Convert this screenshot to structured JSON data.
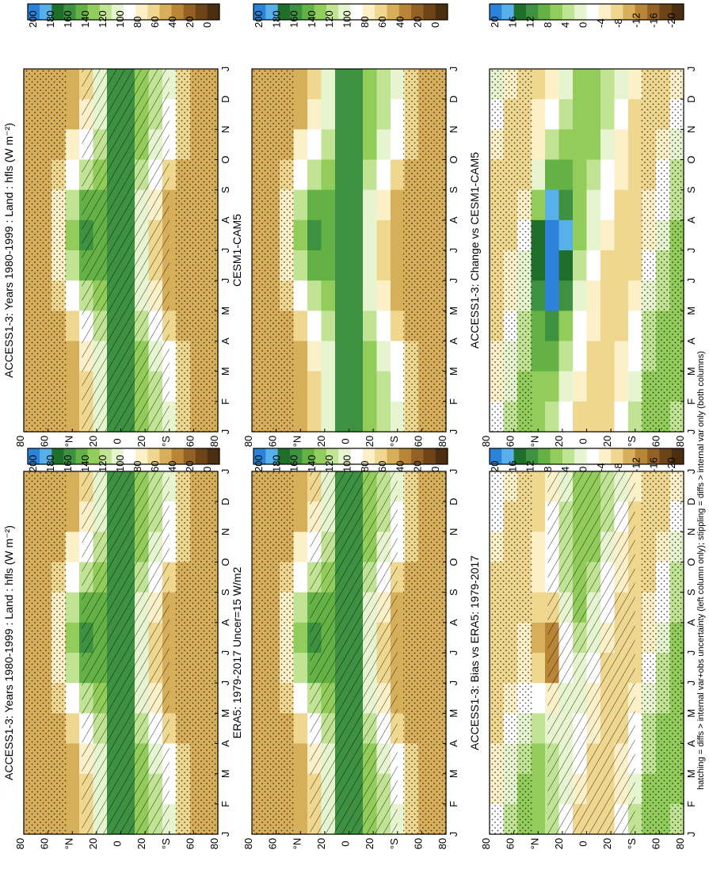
{
  "footer": "hatching = diffs > internal var+obs uncertainty (left column only); stippling = diffs > internal var only (both columns)",
  "chart_data": [
    {
      "type": "heatmap",
      "title": "ACCESS1-3: Years 1980-1999 : Land : hfls (W m⁻²)",
      "months": [
        "J",
        "F",
        "M",
        "A",
        "M",
        "J",
        "J",
        "A",
        "S",
        "O",
        "N",
        "D",
        "J"
      ],
      "lat_ticks": [
        "80",
        "60",
        "°N",
        "20",
        "0",
        "20",
        "°S",
        "60",
        "80"
      ],
      "colorbar": [
        "200",
        "180",
        "160",
        "140",
        "120",
        "100",
        "80",
        "60",
        "40",
        "20",
        "0"
      ]
    },
    {
      "type": "heatmap",
      "title": "ACCESS1-3: Years 1980-1999 : Land : hfls (W m⁻²)",
      "months": [
        "J",
        "F",
        "M",
        "A",
        "M",
        "J",
        "J",
        "A",
        "S",
        "O",
        "N",
        "D",
        "J"
      ],
      "lat_ticks": [
        "80",
        "60",
        "°N",
        "20",
        "0",
        "20",
        "°S",
        "60",
        "80"
      ],
      "colorbar": [
        "200",
        "180",
        "160",
        "140",
        "120",
        "100",
        "80",
        "60",
        "40",
        "20",
        "0"
      ]
    },
    {
      "type": "heatmap",
      "title": "ERA5: 1979-2017 Uncer=15 W/m2",
      "months": [
        "J",
        "F",
        "M",
        "A",
        "M",
        "J",
        "J",
        "A",
        "S",
        "O",
        "N",
        "D",
        "J"
      ],
      "lat_ticks": [
        "80",
        "60",
        "°N",
        "20",
        "0",
        "20",
        "°S",
        "60",
        "80"
      ],
      "colorbar": [
        "200",
        "180",
        "160",
        "140",
        "120",
        "100",
        "80",
        "60",
        "40",
        "20",
        "0"
      ]
    },
    {
      "type": "heatmap",
      "title": "CESM1-CAM5",
      "months": [
        "J",
        "F",
        "M",
        "A",
        "M",
        "J",
        "J",
        "A",
        "S",
        "O",
        "N",
        "D",
        "J"
      ],
      "lat_ticks": [
        "80",
        "60",
        "°N",
        "20",
        "0",
        "20",
        "°S",
        "60",
        "80"
      ],
      "colorbar": [
        "200",
        "180",
        "160",
        "140",
        "120",
        "100",
        "80",
        "60",
        "40",
        "20",
        "0"
      ]
    },
    {
      "type": "heatmap",
      "title": "ACCESS1-3: Bias vs ERA5: 1979-2017",
      "months": [
        "J",
        "F",
        "M",
        "A",
        "M",
        "J",
        "J",
        "A",
        "S",
        "O",
        "N",
        "D",
        "J"
      ],
      "lat_ticks": [
        "80",
        "60",
        "°N",
        "20",
        "0",
        "20",
        "°S",
        "60",
        "80"
      ],
      "colorbar": [
        "20",
        "16",
        "12",
        "8",
        "4",
        "0",
        "-4",
        "-8",
        "-12",
        "-16",
        "-20"
      ]
    },
    {
      "type": "heatmap",
      "title": "ACCESS1-3: Change vs CESM1-CAM5",
      "months": [
        "J",
        "F",
        "M",
        "A",
        "M",
        "J",
        "J",
        "A",
        "S",
        "O",
        "N",
        "D",
        "J"
      ],
      "lat_ticks": [
        "80",
        "60",
        "°N",
        "20",
        "0",
        "20",
        "°S",
        "60",
        "80"
      ],
      "colorbar": [
        "20",
        "16",
        "12",
        "8",
        "4",
        "0",
        "-4",
        "-8",
        "-12",
        "-16",
        "-20"
      ]
    }
  ]
}
